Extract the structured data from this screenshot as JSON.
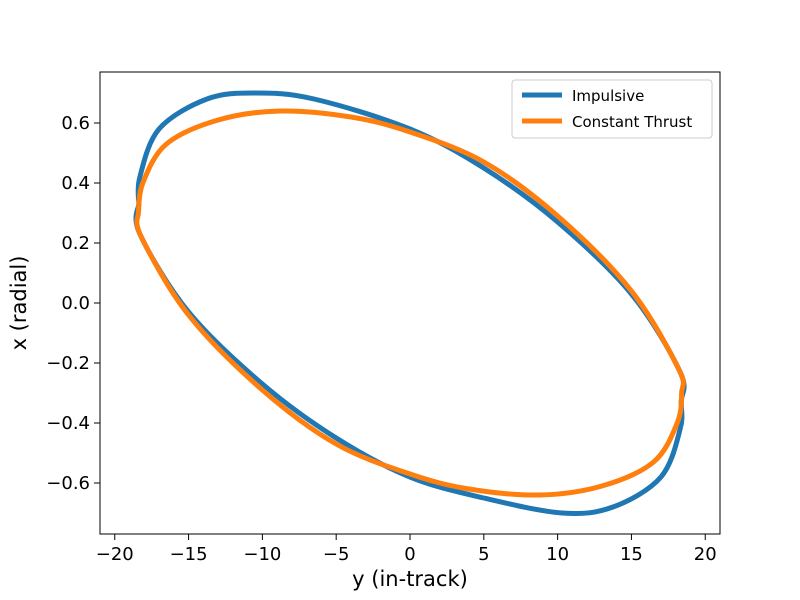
{
  "chart_data": {
    "type": "line",
    "title": "",
    "xlabel": "y (in-track)",
    "ylabel": "x (radial)",
    "xlim": [
      -21,
      21
    ],
    "ylim": [
      -0.77,
      0.77
    ],
    "xticks": [
      -20,
      -15,
      -10,
      -5,
      0,
      5,
      10,
      15,
      20
    ],
    "xtick_labels": [
      "−20",
      "−15",
      "−10",
      "−5",
      "0",
      "5",
      "10",
      "15",
      "20"
    ],
    "yticks": [
      -0.6,
      -0.4,
      -0.2,
      0.0,
      0.2,
      0.4,
      0.6
    ],
    "ytick_labels": [
      "−0.6",
      "−0.4",
      "−0.2",
      "0.0",
      "0.2",
      "0.4",
      "0.6"
    ],
    "grid": false,
    "legend_position": "upper right",
    "series": [
      {
        "name": "Impulsive",
        "color": "#1f77b4",
        "x": [
          -18.37,
          -18.3,
          -17.0,
          -13.75,
          -10.5,
          -6.5,
          0.0,
          5.0,
          10.0,
          15.0,
          18.3,
          18.37,
          18.3,
          17.0,
          13.75,
          10.3,
          5.0,
          0.0,
          -5.0,
          -10.0,
          -15.0,
          -18.3,
          -18.37
        ],
        "y": [
          0.33,
          0.42,
          0.58,
          0.68,
          0.7,
          0.68,
          0.58,
          0.45,
          0.27,
          0.03,
          -0.23,
          -0.33,
          -0.42,
          -0.58,
          -0.68,
          -0.7,
          -0.65,
          -0.58,
          -0.45,
          -0.27,
          -0.03,
          0.23,
          0.33
        ]
      },
      {
        "name": "Constant Thrust",
        "color": "#ff7f0e",
        "x": [
          -18.4,
          -18.1,
          -16.5,
          -13.0,
          -8.8,
          -4.0,
          0.0,
          5.0,
          10.0,
          15.0,
          18.2,
          18.4,
          18.1,
          16.5,
          13.0,
          8.8,
          4.0,
          0.0,
          -5.0,
          -10.0,
          -15.0,
          -18.2,
          -18.4
        ],
        "y": [
          0.3,
          0.4,
          0.53,
          0.61,
          0.64,
          0.62,
          0.57,
          0.47,
          0.29,
          0.04,
          -0.22,
          -0.3,
          -0.4,
          -0.53,
          -0.61,
          -0.64,
          -0.62,
          -0.57,
          -0.47,
          -0.29,
          -0.04,
          0.22,
          0.3
        ]
      }
    ]
  }
}
